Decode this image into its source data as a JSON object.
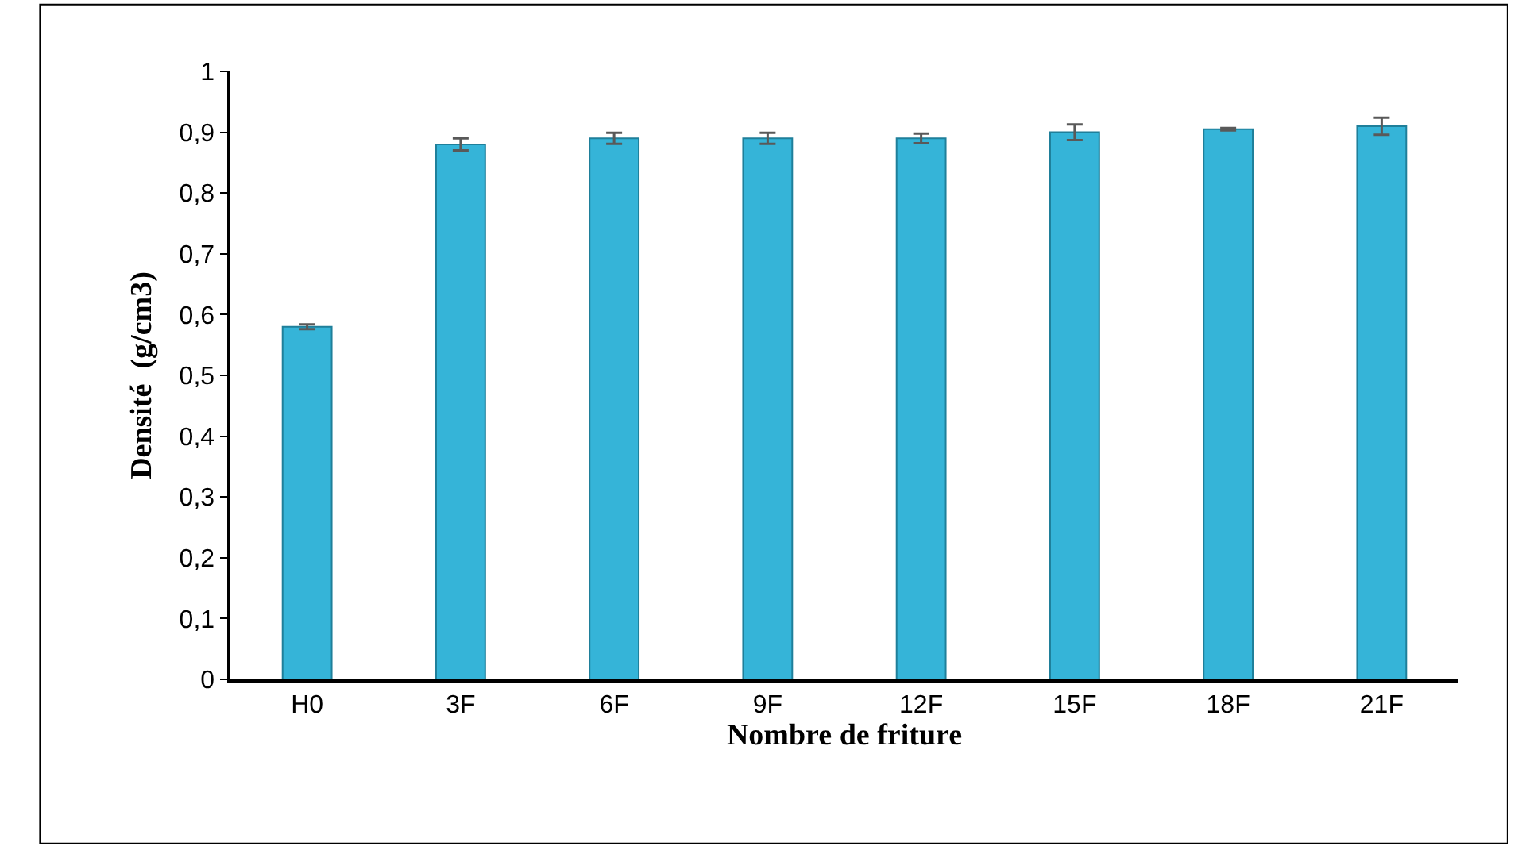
{
  "chart_data": {
    "type": "bar",
    "xlabel": "Nombre de friture",
    "ylabel": "Densité  (g/cm3)",
    "categories": [
      "H0",
      "3F",
      "6F",
      "9F",
      "12F",
      "15F",
      "18F",
      "21F"
    ],
    "values": [
      0.58,
      0.88,
      0.89,
      0.89,
      0.89,
      0.9,
      0.905,
      0.91
    ],
    "errors": [
      0.004,
      0.01,
      0.009,
      0.009,
      0.008,
      0.013,
      0.002,
      0.014
    ],
    "color": "#35b4d8",
    "ylim": [
      0,
      1
    ],
    "yticks": [
      {
        "value": 0,
        "label": "0"
      },
      {
        "value": 0.1,
        "label": "0,1"
      },
      {
        "value": 0.2,
        "label": "0,2"
      },
      {
        "value": 0.3,
        "label": "0,3"
      },
      {
        "value": 0.4,
        "label": "0,4"
      },
      {
        "value": 0.5,
        "label": "0,5"
      },
      {
        "value": 0.6,
        "label": "0,6"
      },
      {
        "value": 0.7,
        "label": "0,7"
      },
      {
        "value": 0.8,
        "label": "0,8"
      },
      {
        "value": 0.9,
        "label": "0,9"
      },
      {
        "value": 1,
        "label": "1"
      }
    ],
    "legend": false
  }
}
